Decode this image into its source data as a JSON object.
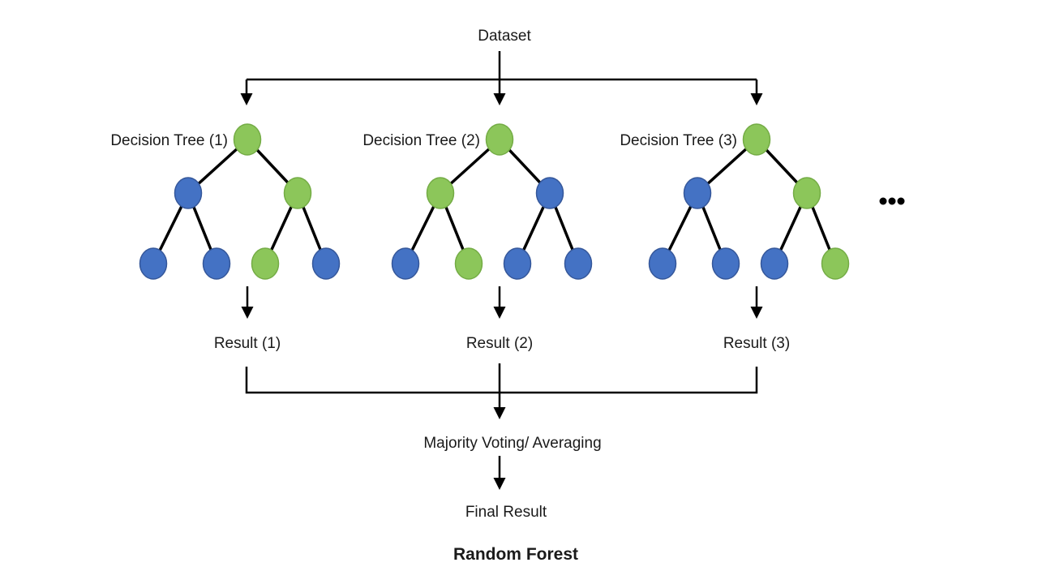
{
  "dataset_label": "Dataset",
  "aggregation_label": "Majority Voting/ Averaging",
  "final_label": "Final Result",
  "title": "Random Forest",
  "ellipsis": "...",
  "colors": {
    "blue": "#4472C4",
    "blue_border": "#35579A",
    "green": "#8CC65A",
    "green_border": "#74AC45",
    "line": "#000000",
    "text": "#1A1A1A"
  },
  "trees": [
    {
      "label": "Decision Tree (1)",
      "result_label": "Result (1)",
      "root": "green",
      "children": [
        "blue",
        "green"
      ],
      "leaves": [
        "blue",
        "blue",
        "green",
        "blue"
      ]
    },
    {
      "label": "Decision Tree (2)",
      "result_label": "Result (2)",
      "root": "green",
      "children": [
        "green",
        "blue"
      ],
      "leaves": [
        "blue",
        "green",
        "blue",
        "blue"
      ]
    },
    {
      "label": "Decision Tree (3)",
      "result_label": "Result (3)",
      "root": "green",
      "children": [
        "blue",
        "green"
      ],
      "leaves": [
        "blue",
        "blue",
        "blue",
        "green"
      ]
    }
  ]
}
